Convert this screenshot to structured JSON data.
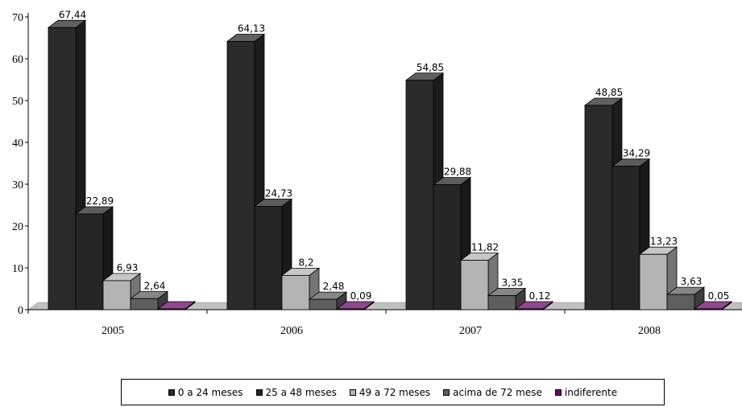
{
  "chart_data": {
    "type": "bar",
    "categories": [
      "2005",
      "2006",
      "2007",
      "2008"
    ],
    "series": [
      {
        "name": "0 a 24 meses",
        "values": [
          67.44,
          64.13,
          54.85,
          48.85
        ],
        "labels": [
          "67,44",
          "64,13",
          "54,85",
          "48,85"
        ],
        "color": "#2b2b2b"
      },
      {
        "name": "25 a 48 meses",
        "values": [
          22.89,
          24.73,
          29.88,
          34.29
        ],
        "labels": [
          "22,89",
          "24,73",
          "29,88",
          "34,29"
        ],
        "color": "#262626"
      },
      {
        "name": "49 a 72 meses",
        "values": [
          6.93,
          8.2,
          11.82,
          13.23
        ],
        "labels": [
          "6,93",
          "8,2",
          "11,82",
          "13,23"
        ],
        "color": "#b4b4b4"
      },
      {
        "name": "acima de 72 mese",
        "values": [
          2.64,
          2.48,
          3.35,
          3.63
        ],
        "labels": [
          "2,64",
          "2,48",
          "3,35",
          "3,63"
        ],
        "color": "#5e5e5e"
      },
      {
        "name": "indiferente",
        "values": [
          0.05,
          0.09,
          0.12,
          0.05
        ],
        "labels": [
          "",
          "0,09",
          "0,12",
          "0,05"
        ],
        "color": "#6a0a6a"
      }
    ],
    "yticks": [
      "0",
      "10",
      "20",
      "30",
      "40",
      "50",
      "60",
      "70"
    ],
    "ylim": [
      0,
      70
    ],
    "grid": false,
    "legend_position": "bottom",
    "colors": {
      "floor": "#c0c0c0",
      "axis": "#000000"
    }
  }
}
